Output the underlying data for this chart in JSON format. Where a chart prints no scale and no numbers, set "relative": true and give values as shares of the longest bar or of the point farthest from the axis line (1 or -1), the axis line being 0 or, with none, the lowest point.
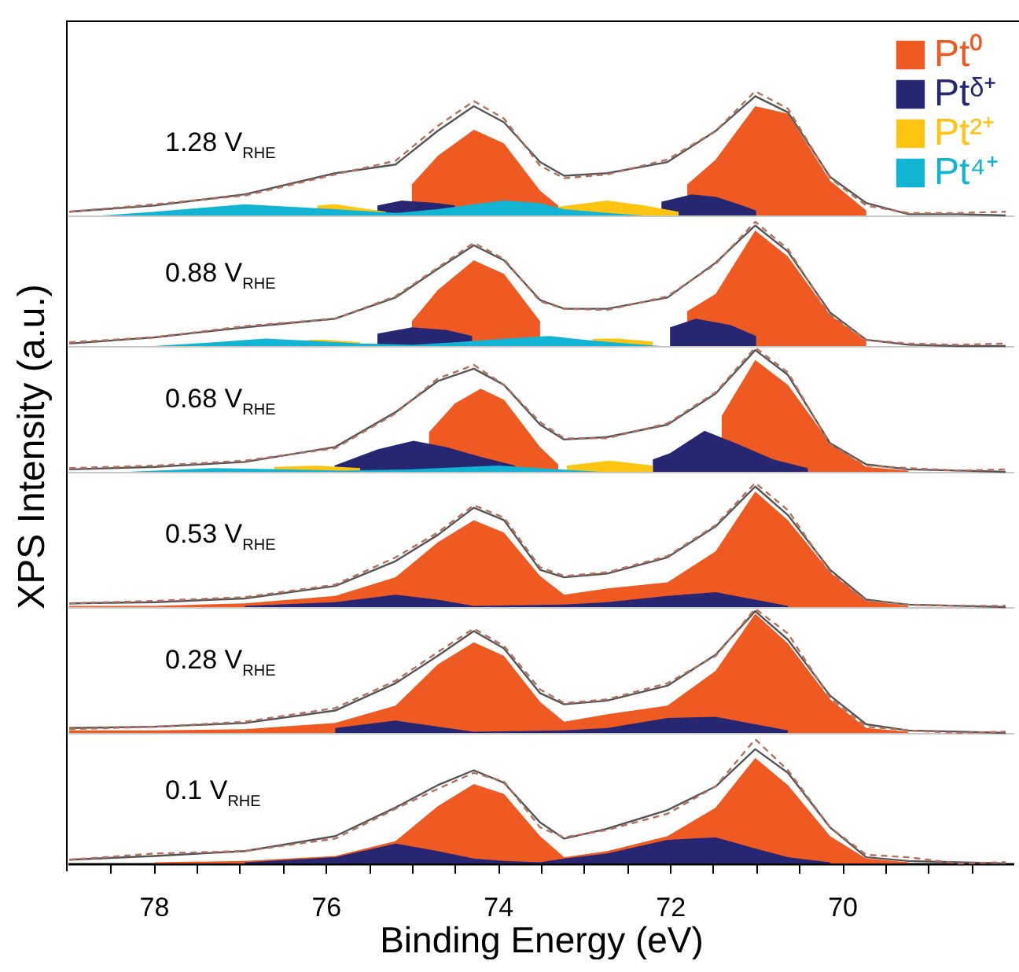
{
  "chart_data": [
    {
      "type": "area",
      "title": "1.28 V$_{RHE}$",
      "ylabel": "XPS Intensity (a.u.)",
      "relative": true,
      "legend": "top right",
      "tick_labels": false,
      "xlim": [
        79,
        68
      ],
      "xticks": [
        78,
        76,
        74,
        72,
        70
      ],
      "x": [
        78.98,
        77.99,
        76.94,
        75.89,
        75.19,
        74.7,
        74.28,
        73.93,
        73.51,
        73.23,
        72.73,
        72.03,
        71.47,
        71.01,
        70.63,
        70.14,
        69.72,
        69.23,
        68.66,
        68.1
      ],
      "series": [
        {
          "name": "Pt⁰",
          "color": "#ef5a22",
          "x": [
            75.0,
            74.7,
            74.28,
            73.93,
            73.51,
            73.3,
            72.5,
            71.8,
            71.47,
            71.01,
            70.63,
            70.14,
            69.72
          ],
          "values": [
            0.25,
            0.48,
            0.69,
            0.58,
            0.2,
            0.08,
            null,
            0.25,
            0.45,
            0.88,
            0.82,
            0.28,
            0.04
          ]
        },
        {
          "name": "Ptᵟ⁺",
          "color": "#262673",
          "x": [
            75.4,
            75.12,
            74.7,
            74.5,
            73.0,
            72.1,
            71.75,
            71.47,
            71.2,
            71.0
          ],
          "values": [
            0.08,
            0.12,
            0.1,
            0.08,
            null,
            0.11,
            0.17,
            0.15,
            0.09,
            0.04
          ]
        },
        {
          "name": "Pt²⁺",
          "color": "#fdc512",
          "x": [
            76.1,
            75.89,
            75.5,
            75.3,
            74.5,
            73.3,
            72.73,
            72.3,
            71.9
          ],
          "values": [
            0.08,
            0.09,
            0.05,
            0.03,
            null,
            0.07,
            0.12,
            0.08,
            0.03
          ]
        },
        {
          "name": "Pt⁴⁺",
          "color": "#12b4d4",
          "x": [
            78.6,
            77.99,
            77.3,
            76.94,
            76.4,
            75.89,
            75.19,
            74.7,
            74.28,
            73.93,
            73.51,
            73.23,
            72.73,
            72.3
          ],
          "values": [
            0,
            0.03,
            0.07,
            0.09,
            0.07,
            0.05,
            0.02,
            0.05,
            0.09,
            0.12,
            0.1,
            0.05,
            0.02,
            0
          ]
        },
        {
          "type": "line",
          "color": "#555555",
          "line_style": "solid",
          "values": [
            0.03,
            0.08,
            0.17,
            0.34,
            0.41,
            0.68,
            0.88,
            0.75,
            0.43,
            0.32,
            0.34,
            0.43,
            0.68,
            0.96,
            0.83,
            0.31,
            0.1,
            0.01,
            0.01,
            0
          ]
        },
        {
          "type": "line",
          "color": "#b5705a",
          "line_style": "dashed",
          "values": [
            0.03,
            0.09,
            0.16,
            0.33,
            0.44,
            0.72,
            0.92,
            0.78,
            0.4,
            0.3,
            0.33,
            0.45,
            0.68,
            1.0,
            0.86,
            0.3,
            0.08,
            0.02,
            0.02,
            0.03
          ]
        }
      ]
    },
    {
      "type": "area",
      "title": "0.88 V$_{RHE}$",
      "relative": true,
      "tick_labels": false,
      "xlim": [
        79,
        68
      ],
      "xticks": [
        78,
        76,
        74,
        72,
        70
      ],
      "x": [
        78.98,
        77.99,
        76.94,
        75.89,
        75.19,
        74.7,
        74.28,
        73.93,
        73.51,
        73.23,
        72.73,
        72.03,
        71.47,
        71.01,
        70.63,
        70.14,
        69.72,
        69.23,
        68.66,
        68.1
      ],
      "series": [
        {
          "color": "#ef5a22",
          "x": [
            75.0,
            74.7,
            74.28,
            73.93,
            73.51,
            72.5,
            71.8,
            71.47,
            71.01,
            70.63,
            70.14,
            69.72
          ],
          "values": [
            0.2,
            0.45,
            0.69,
            0.58,
            0.2,
            null,
            0.28,
            0.42,
            0.93,
            0.72,
            0.25,
            0.04
          ]
        },
        {
          "color": "#262673",
          "x": [
            75.4,
            75.0,
            74.6,
            74.3,
            73.0,
            72.0,
            71.7,
            71.3,
            71.0
          ],
          "values": [
            0.1,
            0.15,
            0.13,
            0.08,
            null,
            0.15,
            0.22,
            0.17,
            0.08
          ]
        },
        {
          "color": "#fdc512",
          "x": [
            76.2,
            76.0,
            75.6,
            74.0,
            72.9,
            72.6,
            72.2
          ],
          "values": [
            0.05,
            0.05,
            0.03,
            null,
            0.058,
            0.06,
            0.035
          ]
        },
        {
          "color": "#12b4d4",
          "x": [
            78.0,
            77.3,
            76.7,
            76.1,
            75.6,
            75.0,
            74.5,
            73.9,
            73.4,
            73.0,
            72.5,
            72.1
          ],
          "values": [
            0,
            0.03,
            0.06,
            0.04,
            0.02,
            0.01,
            0.03,
            0.06,
            0.08,
            0.05,
            0.02,
            0
          ]
        },
        {
          "type": "line",
          "color": "#555555",
          "line_style": "solid",
          "values": [
            0.02,
            0.07,
            0.15,
            0.22,
            0.39,
            0.62,
            0.81,
            0.69,
            0.37,
            0.3,
            0.3,
            0.39,
            0.67,
            0.97,
            0.76,
            0.27,
            0.05,
            0.01,
            0,
            0
          ]
        },
        {
          "type": "line",
          "color": "#b5705a",
          "line_style": "dashed",
          "values": [
            0.03,
            0.07,
            0.16,
            0.22,
            0.4,
            0.63,
            0.83,
            0.7,
            0.36,
            0.3,
            0.29,
            0.4,
            0.66,
            1.0,
            0.78,
            0.25,
            0.05,
            0.02,
            0.01,
            0.02
          ]
        }
      ]
    },
    {
      "type": "area",
      "title": "0.68 V$_{RHE}$",
      "relative": true,
      "tick_labels": false,
      "xlim": [
        79,
        68
      ],
      "xticks": [
        78,
        76,
        74,
        72,
        70
      ],
      "x": [
        78.98,
        77.99,
        76.94,
        75.89,
        75.19,
        74.7,
        74.28,
        73.93,
        73.51,
        73.23,
        72.73,
        72.03,
        71.47,
        71.01,
        70.63,
        70.14,
        69.72,
        69.23,
        68.66,
        68.1
      ],
      "series": [
        {
          "color": "#ef5a22",
          "x": [
            74.8,
            74.5,
            74.2,
            73.93,
            73.51,
            73.3,
            72.5,
            71.4,
            71.01,
            70.63,
            70.14,
            69.72,
            69.23
          ],
          "values": [
            0.32,
            0.55,
            0.67,
            0.58,
            0.2,
            0.06,
            null,
            0.45,
            0.9,
            0.7,
            0.23,
            0.04,
            0.01
          ]
        },
        {
          "color": "#262673",
          "x": [
            75.9,
            75.4,
            74.98,
            74.6,
            74.2,
            73.8,
            73.0,
            72.2,
            72.0,
            71.6,
            71.2,
            70.8,
            70.4
          ],
          "values": [
            0.05,
            0.18,
            0.25,
            0.2,
            0.12,
            0.05,
            null,
            0.1,
            0.15,
            0.33,
            0.22,
            0.1,
            0.03
          ]
        },
        {
          "color": "#fdc512",
          "x": [
            76.6,
            76.1,
            75.6,
            74.5,
            73.2,
            72.7,
            72.2
          ],
          "values": [
            0.04,
            0.05,
            0.03,
            null,
            0.05,
            0.09,
            0.05
          ]
        },
        {
          "color": "#12b4d4",
          "x": [
            78.3,
            77.3,
            76.5,
            75.8,
            75.0,
            74.0,
            73.3,
            72.8
          ],
          "values": [
            0,
            0.03,
            0.02,
            0.01,
            0.02,
            0.05,
            0.02,
            0
          ]
        },
        {
          "type": "line",
          "color": "#555555",
          "line_style": "solid",
          "values": [
            0.02,
            0.04,
            0.08,
            0.2,
            0.48,
            0.73,
            0.83,
            0.7,
            0.38,
            0.26,
            0.28,
            0.38,
            0.63,
            0.98,
            0.78,
            0.23,
            0.06,
            0.02,
            0.01,
            0
          ]
        },
        {
          "type": "line",
          "color": "#b5705a",
          "line_style": "dashed",
          "values": [
            0.03,
            0.05,
            0.09,
            0.19,
            0.47,
            0.75,
            0.86,
            0.7,
            0.4,
            0.27,
            0.27,
            0.39,
            0.64,
            1.0,
            0.8,
            0.22,
            0.05,
            0.03,
            0.01,
            0.02
          ]
        }
      ]
    },
    {
      "type": "area",
      "title": "0.53 V$_{RHE}$",
      "relative": true,
      "tick_labels": false,
      "xlim": [
        79,
        68
      ],
      "xticks": [
        78,
        76,
        74,
        72,
        70
      ],
      "x": [
        78.98,
        77.99,
        76.94,
        75.89,
        75.19,
        74.7,
        74.28,
        73.93,
        73.51,
        73.23,
        72.73,
        72.03,
        71.47,
        71.01,
        70.63,
        70.14,
        69.72,
        69.23,
        68.66,
        68.1
      ],
      "series": [
        {
          "color": "#ef5a22",
          "values": [
            0.01,
            0.01,
            0.03,
            0.09,
            0.24,
            0.52,
            0.7,
            0.6,
            0.25,
            0.1,
            0.15,
            0.2,
            0.45,
            0.93,
            0.7,
            0.28,
            0.05,
            0.01,
            null,
            null
          ]
        },
        {
          "color": "#262673",
          "x": [
            76.94,
            75.89,
            75.19,
            74.7,
            74.28,
            73.23,
            72.73,
            72.03,
            71.47,
            71.01,
            70.63
          ],
          "values": [
            0.01,
            0.04,
            0.1,
            0.06,
            0.01,
            0.02,
            0.04,
            0.09,
            0.12,
            0.06,
            0.01
          ]
        },
        {
          "type": "line",
          "color": "#555555",
          "line_style": "solid",
          "values": [
            0.03,
            0.04,
            0.07,
            0.17,
            0.37,
            0.58,
            0.8,
            0.7,
            0.3,
            0.24,
            0.27,
            0.4,
            0.65,
            0.97,
            0.74,
            0.3,
            0.06,
            0.02,
            0.01,
            0
          ]
        },
        {
          "type": "line",
          "color": "#b5705a",
          "line_style": "dashed",
          "values": [
            0.03,
            0.05,
            0.08,
            0.18,
            0.4,
            0.6,
            0.82,
            0.72,
            0.32,
            0.25,
            0.28,
            0.41,
            0.66,
            1.0,
            0.78,
            0.28,
            0.05,
            0.02,
            0.01,
            0.01
          ]
        }
      ]
    },
    {
      "type": "area",
      "title": "0.28 V$_{RHE}$",
      "relative": true,
      "tick_labels": false,
      "xlim": [
        79,
        68
      ],
      "xticks": [
        78,
        76,
        74,
        72,
        70
      ],
      "x": [
        78.98,
        77.99,
        76.94,
        75.89,
        75.19,
        74.7,
        74.28,
        73.93,
        73.51,
        73.23,
        72.73,
        72.03,
        71.47,
        71.01,
        70.63,
        70.14,
        69.72,
        69.23,
        68.66,
        68.1
      ],
      "series": [
        {
          "color": "#ef5a22",
          "values": [
            0.02,
            0.02,
            0.03,
            0.08,
            0.22,
            0.55,
            0.73,
            0.62,
            0.25,
            0.09,
            0.15,
            0.22,
            0.5,
            0.96,
            0.72,
            0.27,
            0.04,
            0.01,
            null,
            null
          ]
        },
        {
          "color": "#262673",
          "x": [
            75.89,
            75.19,
            74.7,
            74.28,
            73.23,
            72.73,
            72.03,
            71.47,
            71.01,
            70.63
          ],
          "values": [
            0.04,
            0.1,
            0.05,
            0.01,
            0.02,
            0.04,
            0.12,
            0.13,
            0.07,
            0.02
          ]
        },
        {
          "type": "line",
          "color": "#555555",
          "line_style": "solid",
          "values": [
            0.04,
            0.05,
            0.08,
            0.18,
            0.4,
            0.62,
            0.82,
            0.68,
            0.32,
            0.23,
            0.26,
            0.38,
            0.63,
            0.98,
            0.75,
            0.3,
            0.07,
            0.02,
            0.01,
            0
          ]
        },
        {
          "type": "line",
          "color": "#b5705a",
          "line_style": "dashed",
          "values": [
            0.03,
            0.05,
            0.09,
            0.2,
            0.42,
            0.65,
            0.84,
            0.7,
            0.35,
            0.24,
            0.27,
            0.4,
            0.62,
            1.0,
            0.8,
            0.28,
            0.05,
            0.02,
            0,
            0.01
          ]
        }
      ]
    },
    {
      "type": "area",
      "title": "0.1 V$_{RHE}$",
      "xlabel": "Binding Energy (eV)",
      "relative": true,
      "xlim": [
        79,
        68
      ],
      "xticks": [
        {
          "value": 78.5,
          "label": null
        },
        78,
        {
          "value": 77.5,
          "label": null
        },
        {
          "value": 77,
          "label": null
        },
        {
          "value": 76.5,
          "label": null
        },
        76,
        {
          "value": 75.5,
          "label": null
        },
        {
          "value": 75,
          "label": null
        },
        {
          "value": 74.5,
          "label": null
        },
        74,
        {
          "value": 73.5,
          "label": null
        },
        {
          "value": 73,
          "label": null
        },
        {
          "value": 72.5,
          "label": null
        },
        72,
        {
          "value": 71.5,
          "label": null
        },
        {
          "value": 71,
          "label": null
        },
        {
          "value": 70.5,
          "label": null
        },
        70,
        {
          "value": 69.5,
          "label": null
        },
        {
          "value": 69,
          "label": null
        },
        {
          "value": 68.5,
          "label": null
        }
      ],
      "x": [
        78.98,
        77.99,
        76.94,
        75.89,
        75.19,
        74.7,
        74.28,
        73.93,
        73.51,
        73.23,
        72.73,
        72.03,
        71.47,
        71.01,
        70.63,
        70.14,
        69.72,
        69.23,
        68.66,
        68.1
      ],
      "series": [
        {
          "color": "#ef5a22",
          "values": [
            null,
            0.01,
            0.02,
            0.06,
            0.18,
            0.46,
            0.64,
            0.56,
            0.22,
            0.05,
            0.1,
            0.22,
            0.45,
            0.85,
            0.63,
            0.22,
            0.04,
            0.01,
            null,
            null
          ]
        },
        {
          "color": "#262673",
          "x": [
            76.94,
            75.89,
            75.19,
            74.7,
            74.28,
            73.93,
            73.51,
            73.23,
            72.73,
            72.03,
            71.47,
            71.01,
            70.63,
            70.14
          ],
          "values": [
            0.01,
            0.05,
            0.16,
            0.1,
            0.04,
            0.02,
            0.01,
            0.04,
            0.08,
            0.19,
            0.21,
            0.12,
            0.05,
            0.01
          ]
        },
        {
          "type": "line",
          "color": "#555555",
          "line_style": "solid",
          "values": [
            0.03,
            0.06,
            0.1,
            0.22,
            0.45,
            0.63,
            0.75,
            0.65,
            0.33,
            0.2,
            0.28,
            0.43,
            0.62,
            0.92,
            0.73,
            0.29,
            0.05,
            0.02,
            0.01,
            0
          ]
        },
        {
          "type": "line",
          "color": "#b5705a",
          "line_style": "dashed",
          "values": [
            0.03,
            0.08,
            0.1,
            0.2,
            0.44,
            0.6,
            0.73,
            0.66,
            0.29,
            0.21,
            0.27,
            0.4,
            0.62,
            1.0,
            0.75,
            0.29,
            0.07,
            0.05,
            0,
            0.01
          ]
        }
      ]
    }
  ]
}
